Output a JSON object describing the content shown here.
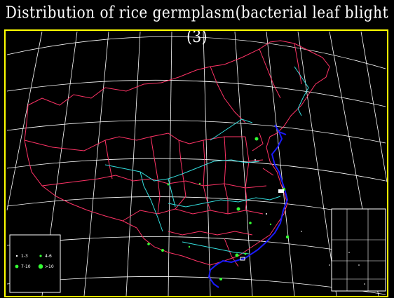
{
  "title": "Distribution of rice germplasm(bacterial leaf blight (3)",
  "legend": {
    "items": [
      {
        "label": "1-3",
        "color": "#ffffff",
        "size": 1.2
      },
      {
        "label": "4-6",
        "color": "#33ff33",
        "size": 1.6
      },
      {
        "label": "7-10",
        "color": "#33ff33",
        "size": 2.4
      },
      {
        "label": ">10",
        "color": "#33ff33",
        "size": 3.2
      }
    ]
  },
  "colors": {
    "background": "#000000",
    "frame": "#ffff00",
    "graticule": "#ffffff",
    "province_borders": "#ff3366",
    "rivers": "#33dddd",
    "coastline": "#1a1aff",
    "points": "#33ff33"
  }
}
